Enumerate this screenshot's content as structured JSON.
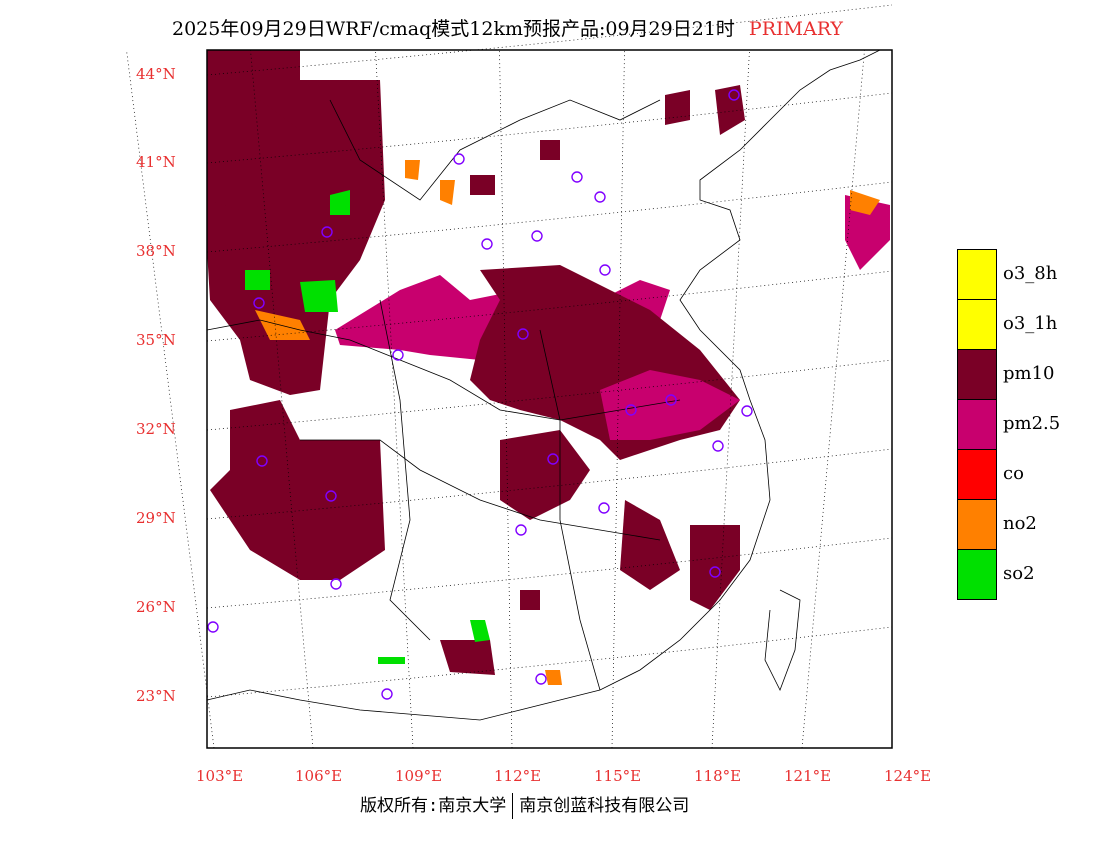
{
  "title": {
    "main": "2025年09月29日WRF/cmaq模式12km预报产品:09月29日21时",
    "tag": "PRIMARY"
  },
  "lat_labels": [
    "44°N",
    "41°N",
    "38°N",
    "35°N",
    "32°N",
    "29°N",
    "26°N",
    "23°N"
  ],
  "lon_labels": [
    "103°E",
    "106°E",
    "109°E",
    "112°E",
    "115°E",
    "118°E",
    "121°E",
    "124°E"
  ],
  "legend": [
    {
      "label": "o3_8h",
      "color": "#ffff00"
    },
    {
      "label": "o3_1h",
      "color": "#ffff00"
    },
    {
      "label": "pm10",
      "color": "#7a0026"
    },
    {
      "label": "pm2.5",
      "color": "#c8006e"
    },
    {
      "label": "co",
      "color": "#ff0000"
    },
    {
      "label": "no2",
      "color": "#ff8000"
    },
    {
      "label": "so2",
      "color": "#00e000"
    }
  ],
  "footer": {
    "left": "版权所有:南京大学",
    "right": "南京创蓝科技有限公司"
  }
}
